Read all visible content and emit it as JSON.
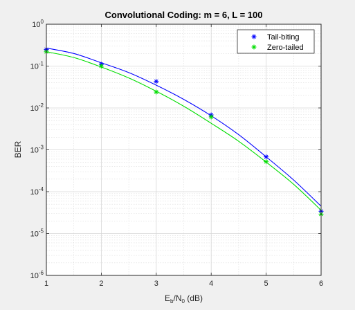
{
  "chart_data": {
    "type": "line",
    "title": "Convolutional Coding: m = 6, L = 100",
    "xlabel": {
      "base": "E",
      "sub1": "b",
      "mid": "/N",
      "sub2": "0",
      "tail": " (dB)"
    },
    "ylabel": "BER",
    "xlim": [
      1,
      6
    ],
    "ylim": [
      1e-06,
      1
    ],
    "yscale": "log",
    "grid": true,
    "minor_grid": true,
    "legend_position": "top-right",
    "x_ticks": [
      1,
      2,
      3,
      4,
      5,
      6
    ],
    "x_tick_labels": [
      "1",
      "2",
      "3",
      "4",
      "5",
      "6"
    ],
    "y_ticks": [
      {
        "value": 1,
        "base": "10",
        "exp": "0"
      },
      {
        "value": 0.1,
        "base": "10",
        "exp": "-1"
      },
      {
        "value": 0.01,
        "base": "10",
        "exp": "-2"
      },
      {
        "value": 0.001,
        "base": "10",
        "exp": "-3"
      },
      {
        "value": 0.0001,
        "base": "10",
        "exp": "-4"
      },
      {
        "value": 1e-05,
        "base": "10",
        "exp": "-5"
      },
      {
        "value": 1e-06,
        "base": "10",
        "exp": "-6"
      }
    ],
    "series": [
      {
        "name": "Tail-biting",
        "color": "#0000ff",
        "marker": "asterisk",
        "points": [
          {
            "x": 1,
            "y": 0.25
          },
          {
            "x": 2,
            "y": 0.11
          },
          {
            "x": 3,
            "y": 0.043
          },
          {
            "x": 4,
            "y": 0.0068
          },
          {
            "x": 5,
            "y": 0.00068
          },
          {
            "x": 6,
            "y": 3.4e-05
          }
        ],
        "curve": [
          {
            "x": 1,
            "y": 0.27
          },
          {
            "x": 1.5,
            "y": 0.2
          },
          {
            "x": 2,
            "y": 0.12
          },
          {
            "x": 2.5,
            "y": 0.07
          },
          {
            "x": 3,
            "y": 0.035
          },
          {
            "x": 3.5,
            "y": 0.016
          },
          {
            "x": 4,
            "y": 0.0065
          },
          {
            "x": 4.5,
            "y": 0.0023
          },
          {
            "x": 5,
            "y": 0.00068
          },
          {
            "x": 5.5,
            "y": 0.00019
          },
          {
            "x": 6,
            "y": 4.5e-05
          }
        ]
      },
      {
        "name": "Zero-tailed",
        "color": "#00dd00",
        "marker": "asterisk",
        "points": [
          {
            "x": 1,
            "y": 0.22
          },
          {
            "x": 2,
            "y": 0.1
          },
          {
            "x": 3,
            "y": 0.024
          },
          {
            "x": 4,
            "y": 0.0061
          },
          {
            "x": 5,
            "y": 0.00052
          },
          {
            "x": 6,
            "y": 2.9e-05
          }
        ],
        "curve": [
          {
            "x": 1,
            "y": 0.22
          },
          {
            "x": 1.5,
            "y": 0.16
          },
          {
            "x": 2,
            "y": 0.095
          },
          {
            "x": 2.5,
            "y": 0.052
          },
          {
            "x": 3,
            "y": 0.025
          },
          {
            "x": 3.5,
            "y": 0.011
          },
          {
            "x": 4,
            "y": 0.0043
          },
          {
            "x": 4.5,
            "y": 0.0016
          },
          {
            "x": 5,
            "y": 0.00051
          },
          {
            "x": 5.5,
            "y": 0.00015
          },
          {
            "x": 6,
            "y": 3.6e-05
          }
        ]
      }
    ]
  }
}
